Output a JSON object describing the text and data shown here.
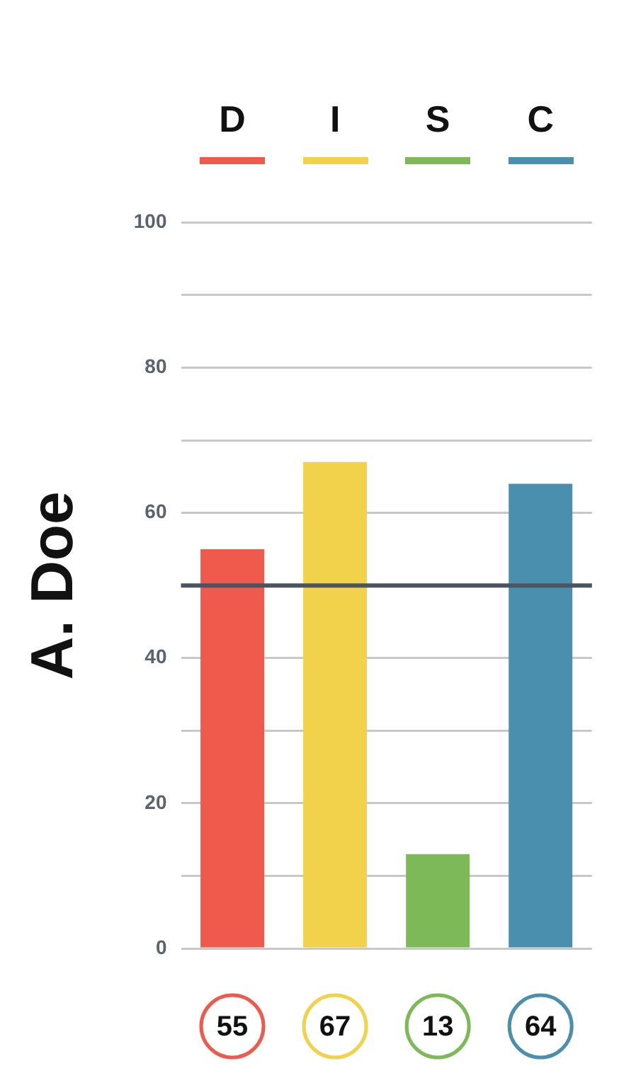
{
  "chart_data": {
    "type": "bar",
    "ylabel": "A. Doe",
    "categories": [
      "D",
      "I",
      "S",
      "C"
    ],
    "values": [
      55,
      67,
      13,
      64
    ],
    "colors": [
      "#ef5a4c",
      "#f2d24b",
      "#7dba57",
      "#4a8fae"
    ],
    "ylim": [
      0,
      100
    ],
    "yticks": [
      0,
      {
        "value": 10,
        "label": null
      },
      20,
      {
        "value": 30,
        "label": null
      },
      40,
      {
        "value": 50,
        "label": null
      },
      60,
      {
        "value": 70,
        "label": null
      },
      80,
      {
        "value": 90,
        "label": null
      },
      100
    ],
    "grid": "y",
    "legend": false,
    "data_labels": true,
    "ref_lines": [
      {
        "axis": "y",
        "value": 50,
        "color": "#4b5562"
      }
    ]
  }
}
